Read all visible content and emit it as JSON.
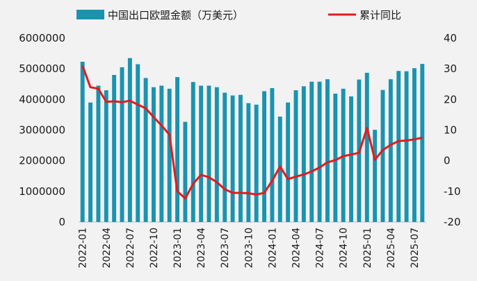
{
  "chart_data": {
    "type": "bar+line",
    "title": "",
    "xlabel": "",
    "ylabel": "",
    "ylim": [
      0,
      6000000
    ],
    "y2lim": [
      -20,
      40
    ],
    "y_ticks": [
      "0",
      "1000000",
      "2000000",
      "3000000",
      "4000000",
      "5000000",
      "6000000"
    ],
    "y2_ticks": [
      "-20",
      "-10",
      "0",
      "10",
      "20",
      "30",
      "40"
    ],
    "x_tick_labels": [
      "2022-01",
      "2022-04",
      "2022-07",
      "2022-10",
      "2023-01",
      "2023-04",
      "2023-07",
      "2023-10",
      "2024-01",
      "2024-04",
      "2024-07",
      "2024-10",
      "2025-01",
      "2025-04",
      "2025-07"
    ],
    "grid": false,
    "legend_position": "top",
    "categories": [
      "2022-01",
      "2022-02",
      "2022-03",
      "2022-04",
      "2022-05",
      "2022-06",
      "2022-07",
      "2022-08",
      "2022-09",
      "2022-10",
      "2022-11",
      "2022-12",
      "2023-01",
      "2023-02",
      "2023-03",
      "2023-04",
      "2023-05",
      "2023-06",
      "2023-07",
      "2023-08",
      "2023-09",
      "2023-10",
      "2023-11",
      "2023-12",
      "2024-01",
      "2024-02",
      "2024-03",
      "2024-04",
      "2024-05",
      "2024-06",
      "2024-07",
      "2024-08",
      "2024-09",
      "2024-10",
      "2024-11",
      "2024-12",
      "2025-01",
      "2025-02",
      "2025-03",
      "2025-04",
      "2025-05",
      "2025-06",
      "2025-07",
      "2025-08"
    ],
    "series": [
      {
        "name": "中国出口欧盟金额（万美元）",
        "type": "bar",
        "axis": "left",
        "color": "#1a93b0",
        "values": [
          5230000,
          3900000,
          4450000,
          4300000,
          4800000,
          5050000,
          5350000,
          5150000,
          4700000,
          4400000,
          4450000,
          4350000,
          4730000,
          3270000,
          4570000,
          4450000,
          4450000,
          4400000,
          4220000,
          4130000,
          4150000,
          3880000,
          3830000,
          4270000,
          4370000,
          3440000,
          3900000,
          4300000,
          4430000,
          4580000,
          4580000,
          4660000,
          4190000,
          4350000,
          4100000,
          4650000,
          4870000,
          3010000,
          4310000,
          4660000,
          4930000,
          4920000,
          5020000,
          5160000
        ]
      },
      {
        "name": "累计同比",
        "type": "line",
        "axis": "right",
        "color": "#e41a1c",
        "values": [
          31,
          24,
          23.5,
          19.2,
          19.4,
          19.1,
          19.6,
          18.3,
          17.1,
          14.2,
          11.5,
          8.5,
          -10,
          -12.3,
          -7.5,
          -4.6,
          -5.4,
          -7,
          -9.3,
          -10.5,
          -10.5,
          -10.6,
          -11,
          -10.5,
          -6.5,
          -1.9,
          -6,
          -5.2,
          -4.5,
          -3.5,
          -2.2,
          -0.5,
          0.2,
          1.5,
          2,
          2.6,
          10.7,
          0.3,
          3.5,
          5.2,
          6.4,
          6.6,
          7,
          7.5
        ]
      }
    ]
  }
}
